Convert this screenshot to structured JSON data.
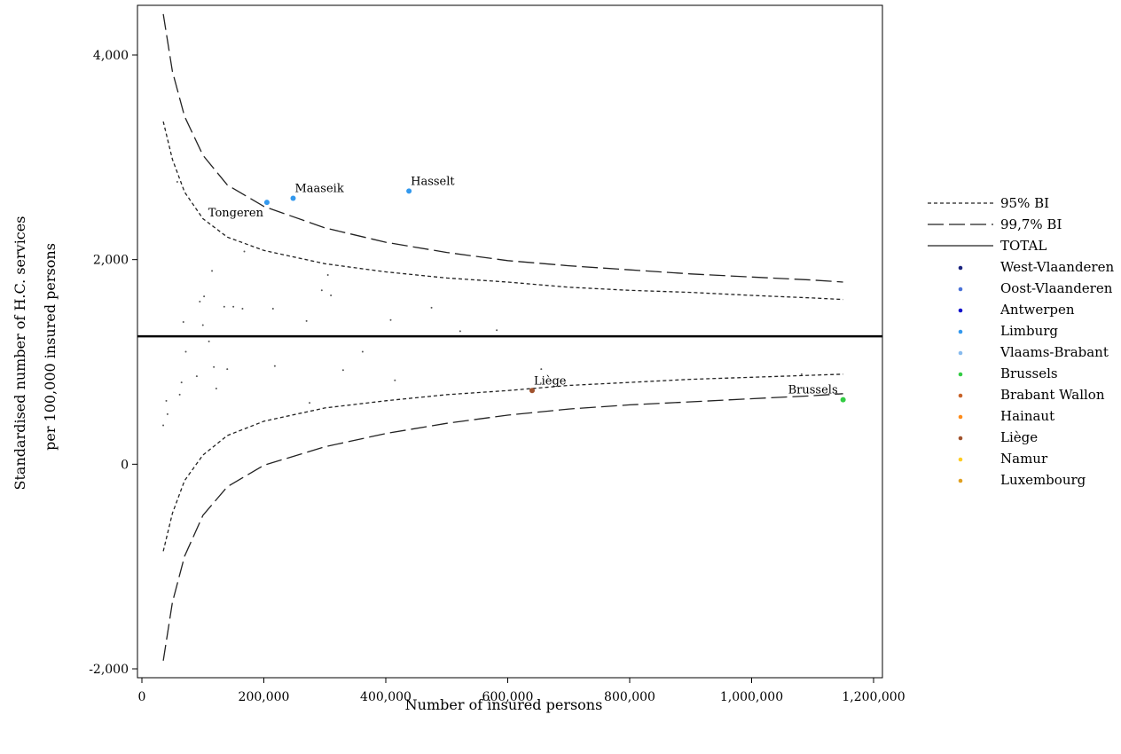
{
  "chart_data": {
    "type": "scatter",
    "xlabel": "Number of insured persons",
    "ylabel_lines": [
      "Standardised number of H.C. services",
      "per 100,000 insured persons"
    ],
    "xlim": [
      0,
      1200000
    ],
    "ylim": [
      -2000,
      4000
    ],
    "x_ticks": [
      0,
      200000,
      400000,
      600000,
      800000,
      1000000,
      1200000
    ],
    "x_tick_labels": [
      "0",
      "200,000",
      "400,000",
      "600,000",
      "800,000",
      "1,000,000",
      "1,200,000"
    ],
    "y_ticks": [
      -2000,
      0,
      2000,
      4000
    ],
    "y_tick_labels": [
      "-2,000",
      "0",
      "2,000",
      "4,000"
    ],
    "total": 1250,
    "bands": [
      {
        "name": "95% BI",
        "style": "dotted",
        "upper": [
          [
            35000,
            3350
          ],
          [
            50000,
            2980
          ],
          [
            70000,
            2660
          ],
          [
            100000,
            2400
          ],
          [
            140000,
            2220
          ],
          [
            200000,
            2090
          ],
          [
            300000,
            1960
          ],
          [
            400000,
            1880
          ],
          [
            500000,
            1820
          ],
          [
            600000,
            1780
          ],
          [
            700000,
            1730
          ],
          [
            800000,
            1700
          ],
          [
            900000,
            1680
          ],
          [
            1000000,
            1650
          ],
          [
            1100000,
            1625
          ],
          [
            1150000,
            1610
          ]
        ],
        "lower": [
          [
            35000,
            -850
          ],
          [
            50000,
            -480
          ],
          [
            70000,
            -160
          ],
          [
            100000,
            90
          ],
          [
            140000,
            280
          ],
          [
            200000,
            420
          ],
          [
            300000,
            550
          ],
          [
            400000,
            620
          ],
          [
            500000,
            680
          ],
          [
            600000,
            720
          ],
          [
            700000,
            770
          ],
          [
            800000,
            800
          ],
          [
            900000,
            830
          ],
          [
            1000000,
            850
          ],
          [
            1100000,
            870
          ],
          [
            1150000,
            880
          ]
        ]
      },
      {
        "name": "99,7% BI",
        "style": "dashed",
        "upper": [
          [
            35000,
            4400
          ],
          [
            50000,
            3840
          ],
          [
            70000,
            3400
          ],
          [
            100000,
            3020
          ],
          [
            140000,
            2730
          ],
          [
            200000,
            2520
          ],
          [
            300000,
            2310
          ],
          [
            400000,
            2170
          ],
          [
            500000,
            2070
          ],
          [
            600000,
            1990
          ],
          [
            700000,
            1940
          ],
          [
            800000,
            1900
          ],
          [
            900000,
            1860
          ],
          [
            1000000,
            1830
          ],
          [
            1100000,
            1800
          ],
          [
            1150000,
            1780
          ]
        ],
        "lower": [
          [
            35000,
            -1920
          ],
          [
            50000,
            -1350
          ],
          [
            70000,
            -900
          ],
          [
            100000,
            -500
          ],
          [
            140000,
            -220
          ],
          [
            200000,
            -10
          ],
          [
            300000,
            170
          ],
          [
            400000,
            300
          ],
          [
            500000,
            400
          ],
          [
            600000,
            480
          ],
          [
            700000,
            540
          ],
          [
            800000,
            580
          ],
          [
            900000,
            610
          ],
          [
            1000000,
            640
          ],
          [
            1100000,
            670
          ],
          [
            1150000,
            690
          ]
        ]
      }
    ],
    "series": [
      {
        "name": "West-Vlaanderen",
        "color": "#1a237e"
      },
      {
        "name": "Oost-Vlaanderen",
        "color": "#4a72d8"
      },
      {
        "name": "Antwerpen",
        "color": "#1111cc"
      },
      {
        "name": "Limburg",
        "color": "#3399ee"
      },
      {
        "name": "Vlaams-Brabant",
        "color": "#88bbee"
      },
      {
        "name": "Brussels",
        "color": "#33cc44"
      },
      {
        "name": "Brabant Wallon",
        "color": "#c8642a"
      },
      {
        "name": "Hainaut",
        "color": "#ff8c1a"
      },
      {
        "name": "Liège",
        "color": "#a0522d"
      },
      {
        "name": "Namur",
        "color": "#ffcc22"
      },
      {
        "name": "Luxembourg",
        "color": "#e0a020"
      }
    ],
    "highlighted_points": [
      {
        "label": "Tongeren",
        "x": 205000,
        "y": 2560,
        "color": "#3399ee",
        "label_pos": "below-left"
      },
      {
        "label": "Maaseik",
        "x": 248000,
        "y": 2600,
        "color": "#3399ee",
        "label_pos": "above-right"
      },
      {
        "label": "Hasselt",
        "x": 438000,
        "y": 2670,
        "color": "#3399ee",
        "label_pos": "above-right"
      },
      {
        "label": "Liège",
        "x": 640000,
        "y": 720,
        "color": "#a0522d",
        "label_pos": "above-right"
      },
      {
        "label": "Brussels",
        "x": 1150000,
        "y": 630,
        "color": "#33cc44",
        "label_pos": "above-left"
      }
    ],
    "background_points": [
      [
        35000,
        380
      ],
      [
        40000,
        620
      ],
      [
        42000,
        490
      ],
      [
        58000,
        2760
      ],
      [
        62000,
        680
      ],
      [
        65000,
        800
      ],
      [
        68000,
        1390
      ],
      [
        72000,
        1100
      ],
      [
        90000,
        860
      ],
      [
        95000,
        1590
      ],
      [
        100000,
        1360
      ],
      [
        102000,
        1640
      ],
      [
        110000,
        1200
      ],
      [
        115000,
        1890
      ],
      [
        118000,
        950
      ],
      [
        122000,
        740
      ],
      [
        135000,
        1540
      ],
      [
        140000,
        930
      ],
      [
        150000,
        1540
      ],
      [
        165000,
        1520
      ],
      [
        168000,
        2080
      ],
      [
        215000,
        1520
      ],
      [
        218000,
        960
      ],
      [
        270000,
        1400
      ],
      [
        275000,
        600
      ],
      [
        295000,
        1700
      ],
      [
        305000,
        1850
      ],
      [
        310000,
        1650
      ],
      [
        330000,
        920
      ],
      [
        362000,
        1100
      ],
      [
        408000,
        1410
      ],
      [
        415000,
        820
      ],
      [
        475000,
        1530
      ],
      [
        522000,
        1300
      ],
      [
        582000,
        1310
      ],
      [
        655000,
        930
      ],
      [
        1082000,
        880
      ],
      [
        1140000,
        690
      ]
    ],
    "legend": [
      {
        "type": "line",
        "style": "dotted",
        "label": "95% BI"
      },
      {
        "type": "line",
        "style": "dashed",
        "label": "99,7% BI"
      },
      {
        "type": "line",
        "style": "solid",
        "label": "TOTAL"
      },
      {
        "type": "marker",
        "label": "West-Vlaanderen",
        "color": "#1a237e"
      },
      {
        "type": "marker",
        "label": "Oost-Vlaanderen",
        "color": "#4a72d8"
      },
      {
        "type": "marker",
        "label": "Antwerpen",
        "color": "#1111cc"
      },
      {
        "type": "marker",
        "label": "Limburg",
        "color": "#3399ee"
      },
      {
        "type": "marker",
        "label": "Vlaams-Brabant",
        "color": "#88bbee"
      },
      {
        "type": "marker",
        "label": "Brussels",
        "color": "#33cc44"
      },
      {
        "type": "marker",
        "label": "Brabant Wallon",
        "color": "#c8642a"
      },
      {
        "type": "marker",
        "label": "Hainaut",
        "color": "#ff8c1a"
      },
      {
        "type": "marker",
        "label": "Liège",
        "color": "#a0522d"
      },
      {
        "type": "marker",
        "label": "Namur",
        "color": "#ffcc22"
      },
      {
        "type": "marker",
        "label": "Luxembourg",
        "color": "#e0a020"
      }
    ],
    "legend_position": "right",
    "grid": false
  }
}
